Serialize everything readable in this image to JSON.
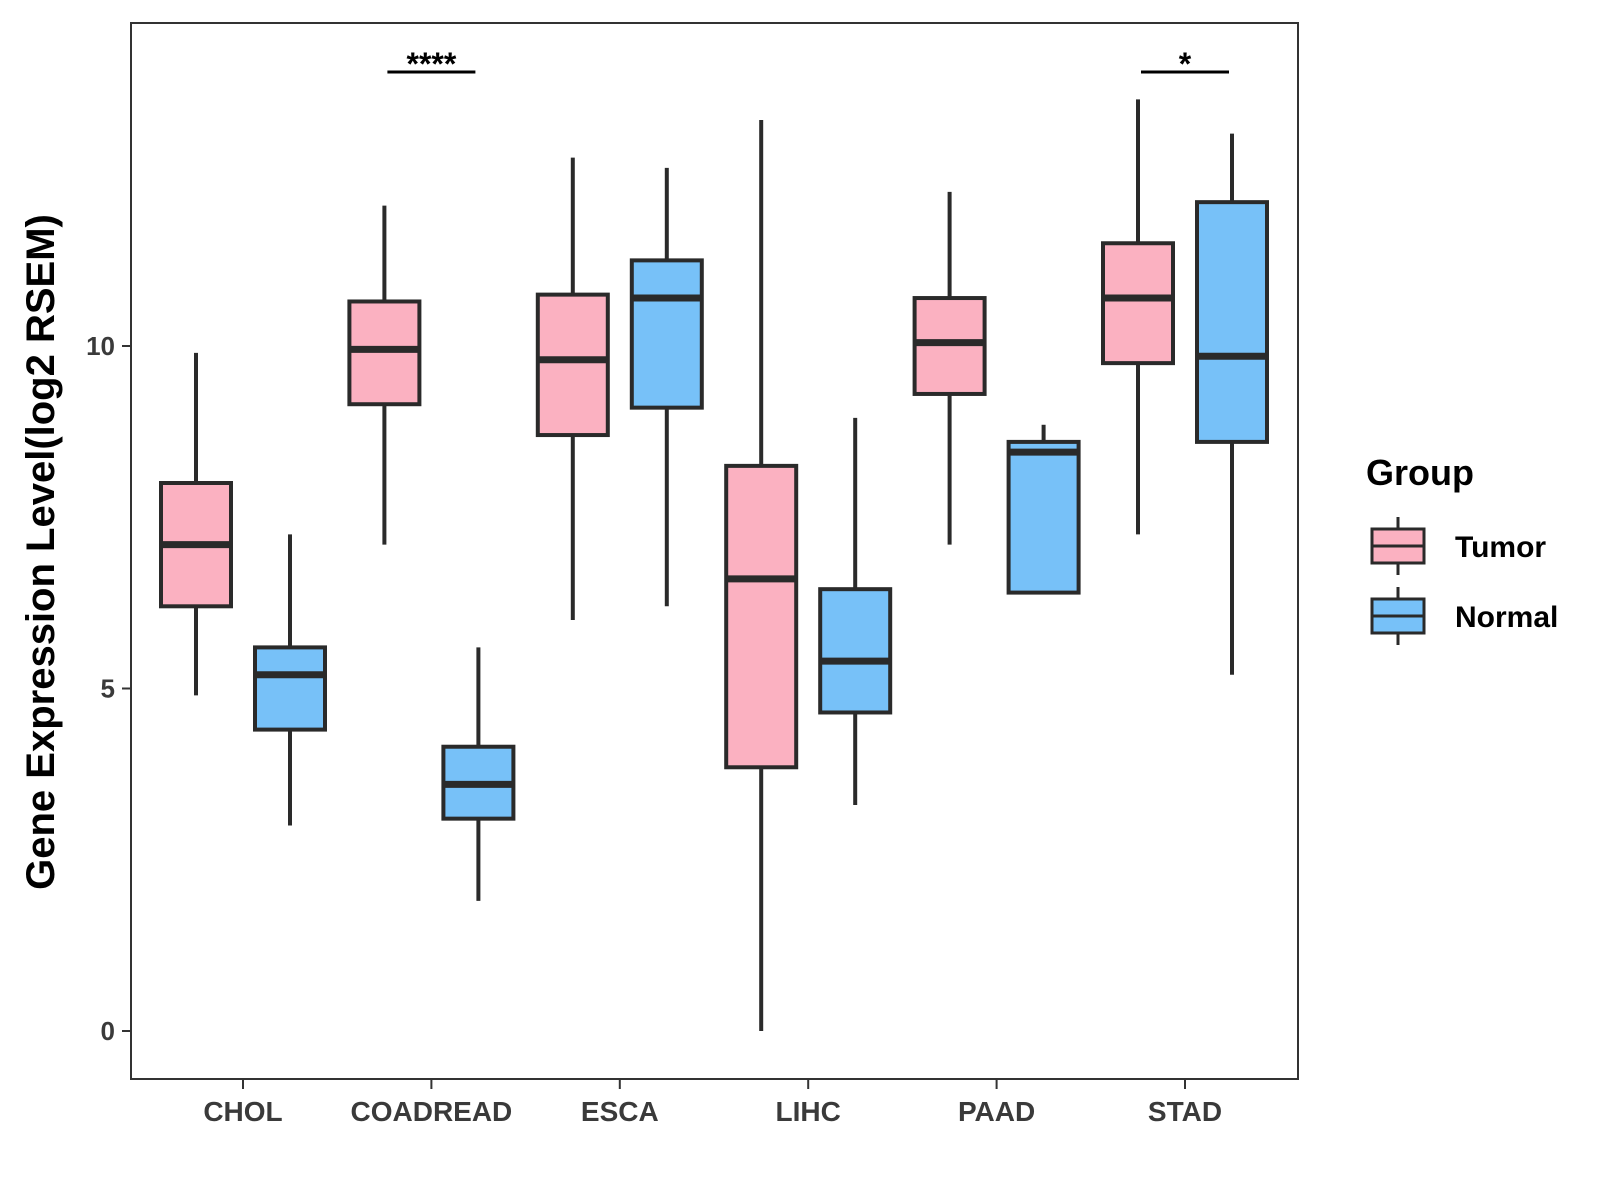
{
  "chart_data": {
    "type": "boxplot",
    "ylabel": "Gene Expression Level(log2 RSEM)",
    "xlabel": "",
    "ylim": [
      -0.7,
      14.7
    ],
    "yticks": [
      0,
      5,
      10
    ],
    "ytick_labels": [
      "0",
      "5",
      "10"
    ],
    "categories": [
      "CHOL",
      "COADREAD",
      "ESCA",
      "LIHC",
      "PAAD",
      "STAD"
    ],
    "legend": {
      "title": "Group",
      "position": "right",
      "entries": [
        {
          "name": "Tumor",
          "color": "#fbb1c1"
        },
        {
          "name": "Normal",
          "color": "#77c1f8"
        }
      ]
    },
    "series": [
      {
        "name": "Tumor",
        "color": "#fbb1c1",
        "boxes": [
          {
            "category": "CHOL",
            "min": 4.9,
            "q1": 6.2,
            "median": 7.1,
            "q3": 8.0,
            "max": 9.9
          },
          {
            "category": "COADREAD",
            "min": 7.1,
            "q1": 9.15,
            "median": 9.95,
            "q3": 10.65,
            "max": 12.05
          },
          {
            "category": "ESCA",
            "min": 6.0,
            "q1": 8.7,
            "median": 9.8,
            "q3": 10.75,
            "max": 12.75
          },
          {
            "category": "LIHC",
            "min": 0.0,
            "q1": 3.85,
            "median": 6.6,
            "q3": 8.25,
            "max": 13.3
          },
          {
            "category": "PAAD",
            "min": 7.1,
            "q1": 9.3,
            "median": 10.05,
            "q3": 10.7,
            "max": 12.25
          },
          {
            "category": "STAD",
            "min": 7.25,
            "q1": 9.75,
            "median": 10.7,
            "q3": 11.5,
            "max": 13.6
          }
        ]
      },
      {
        "name": "Normal",
        "color": "#77c1f8",
        "boxes": [
          {
            "category": "CHOL",
            "min": 3.0,
            "q1": 4.4,
            "median": 5.2,
            "q3": 5.6,
            "max": 7.25
          },
          {
            "category": "COADREAD",
            "min": 1.9,
            "q1": 3.1,
            "median": 3.6,
            "q3": 4.15,
            "max": 5.6
          },
          {
            "category": "ESCA",
            "min": 6.2,
            "q1": 9.1,
            "median": 10.7,
            "q3": 11.25,
            "max": 12.6
          },
          {
            "category": "LIHC",
            "min": 3.3,
            "q1": 4.65,
            "median": 5.4,
            "q3": 6.45,
            "max": 8.95
          },
          {
            "category": "PAAD",
            "min": 6.4,
            "q1": 6.4,
            "median": 8.45,
            "q3": 8.6,
            "max": 8.85
          },
          {
            "category": "STAD",
            "min": 5.2,
            "q1": 8.6,
            "median": 9.85,
            "q3": 12.1,
            "max": 13.1
          }
        ]
      }
    ],
    "annotations": [
      {
        "category": "COADREAD",
        "text": "****",
        "y": 14.0
      },
      {
        "category": "STAD",
        "text": "*",
        "y": 14.0
      }
    ]
  }
}
